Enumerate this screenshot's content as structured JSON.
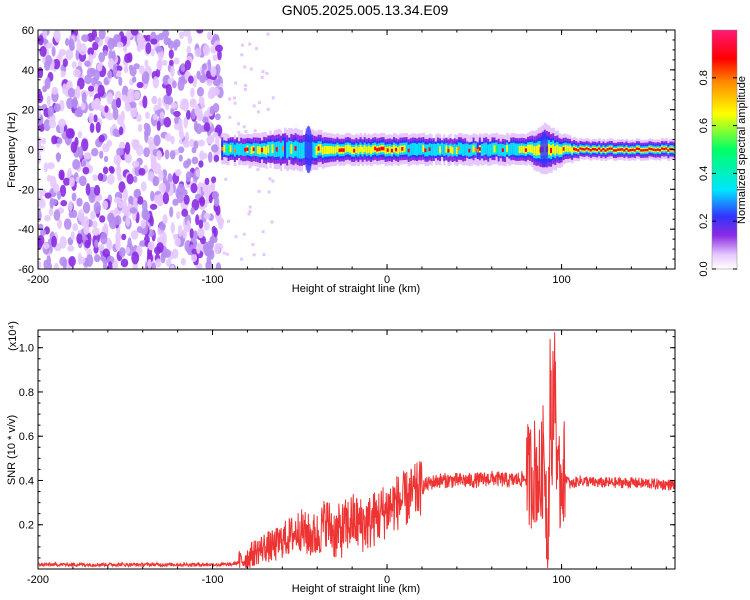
{
  "title": "GN05.2025.005.13.34.E09",
  "chart_data": [
    {
      "type": "heatmap",
      "title": "",
      "xlabel": "Height of straight line (km)",
      "ylabel": "Frequency (Hz)",
      "xlim": [
        -200,
        165
      ],
      "ylim": [
        -60,
        60
      ],
      "xticks": [
        -200,
        -100,
        0,
        100
      ],
      "yticks": [
        -60,
        -40,
        -20,
        0,
        20,
        40,
        60
      ],
      "colorbar": {
        "label": "Normalized spectral amplitude",
        "range": [
          0,
          1
        ],
        "ticks": [
          "0.0",
          "0.2",
          "0.4",
          "0.6",
          "0.8"
        ],
        "colors": [
          "#ffffff",
          "#e6c8ff",
          "#8a2be2",
          "#3333ff",
          "#00e5ff",
          "#00ff66",
          "#ffff00",
          "#ff8c00",
          "#ff0000",
          "#ff1a75"
        ]
      },
      "noise_region_x": [
        -200,
        -95
      ],
      "signal_band": [
        {
          "x": -95,
          "halfwidth_hz": 3,
          "amp": 0.45
        },
        {
          "x": -80,
          "halfwidth_hz": 3,
          "amp": 0.5
        },
        {
          "x": -60,
          "halfwidth_hz": 4,
          "amp": 0.45
        },
        {
          "x": -45,
          "halfwidth_hz": 4,
          "amp": 0.5
        },
        {
          "x": -30,
          "halfwidth_hz": 3,
          "amp": 0.75
        },
        {
          "x": -15,
          "halfwidth_hz": 3,
          "amp": 0.7
        },
        {
          "x": -5,
          "halfwidth_hz": 3,
          "amp": 0.85
        },
        {
          "x": 10,
          "halfwidth_hz": 3,
          "amp": 0.6
        },
        {
          "x": 40,
          "halfwidth_hz": 3,
          "amp": 0.45
        },
        {
          "x": 70,
          "halfwidth_hz": 3,
          "amp": 0.45
        },
        {
          "x": 80,
          "halfwidth_hz": 3,
          "amp": 0.8
        },
        {
          "x": 90,
          "halfwidth_hz": 5,
          "amp": 0.6
        },
        {
          "x": 100,
          "halfwidth_hz": 3,
          "amp": 0.6
        },
        {
          "x": 110,
          "halfwidth_hz": 2,
          "amp": 0.95
        },
        {
          "x": 165,
          "halfwidth_hz": 2,
          "amp": 0.95
        }
      ]
    },
    {
      "type": "line",
      "title": "",
      "xlabel": "Height of straight line (km)",
      "ylabel": "SNR (10 * v/v)",
      "y_multiplier": "(x10⁴)",
      "xlim": [
        -200,
        165
      ],
      "ylim": [
        0,
        1.08
      ],
      "xticks": [
        -200,
        -100,
        0,
        100
      ],
      "yticks": [
        0.2,
        0.4,
        0.6,
        0.8,
        1.0
      ],
      "color": "#ee3333",
      "series": [
        {
          "x": [
            -200,
            -175,
            -150,
            -125,
            -100,
            -90,
            -85,
            -80,
            -75,
            -70,
            -65,
            -60,
            -55,
            -50,
            -45,
            -40,
            -35,
            -30,
            -25,
            -20,
            -15,
            -10,
            -5,
            0,
            5,
            10,
            15,
            20,
            25,
            30,
            40,
            50,
            60,
            70,
            80,
            85,
            88,
            90,
            92,
            94,
            95,
            96,
            98,
            100,
            105,
            110,
            120,
            140,
            165
          ],
          "y": [
            0.02,
            0.02,
            0.02,
            0.02,
            0.02,
            0.02,
            0.03,
            0.05,
            0.08,
            0.1,
            0.1,
            0.13,
            0.15,
            0.18,
            0.15,
            0.15,
            0.22,
            0.16,
            0.18,
            0.22,
            0.2,
            0.21,
            0.24,
            0.27,
            0.3,
            0.31,
            0.34,
            0.37,
            0.39,
            0.4,
            0.4,
            0.4,
            0.41,
            0.4,
            0.41,
            0.45,
            0.38,
            0.55,
            0.15,
            0.75,
            0.4,
            0.95,
            0.3,
            0.45,
            0.38,
            0.4,
            0.39,
            0.39,
            0.38
          ]
        }
      ]
    }
  ]
}
